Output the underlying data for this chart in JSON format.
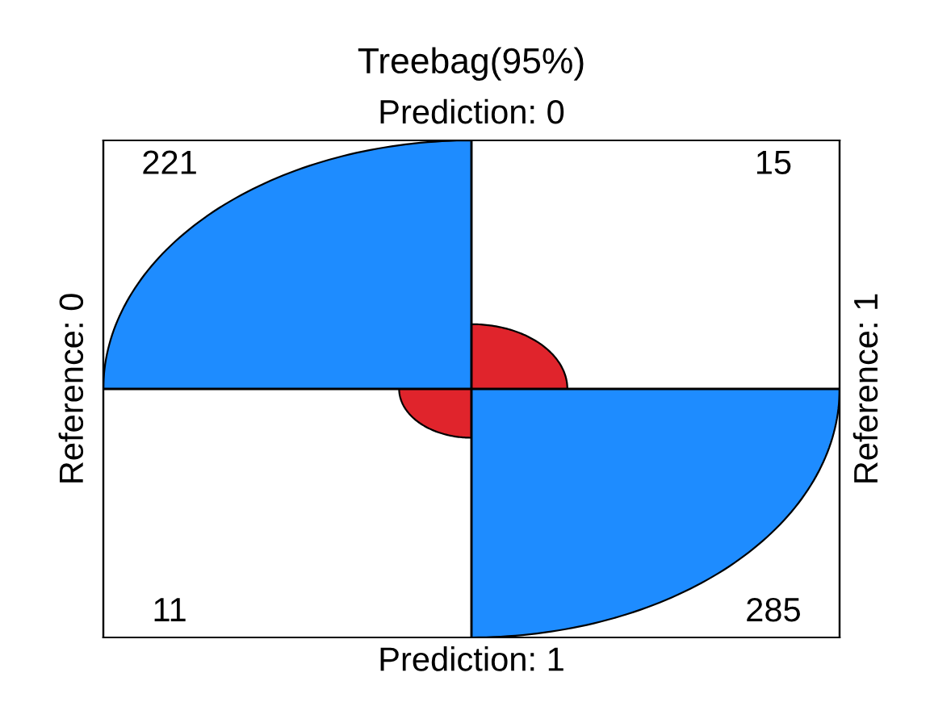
{
  "chart_data": {
    "type": "other",
    "title": "Treebag(95%)",
    "x2label": "Prediction: 0",
    "xlabel": "Prediction: 1",
    "ylabel": "Reference: 0",
    "y2label": "Reference: 1",
    "values": [
      221,
      15,
      11,
      285
    ],
    "colors": [
      "#1e8cff",
      "#e0242c",
      "#e0242c",
      "#1e8cff"
    ],
    "data_labels": true
  }
}
